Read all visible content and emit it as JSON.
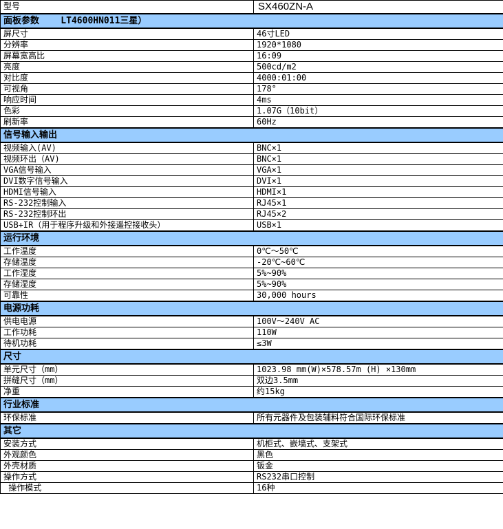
{
  "colors": {
    "section_bg": "#99CCFF",
    "border": "#000000",
    "text": "#000000",
    "background": "#FFFFFF"
  },
  "table": {
    "model": {
      "label": "型号",
      "value": "SX460ZN-A"
    },
    "sections": [
      {
        "title": "面板参数    LT4600HN011三星）",
        "rows": [
          {
            "label": "屏尺寸",
            "value": "46寸LED"
          },
          {
            "label": "分辨率",
            "value": "1920*1080"
          },
          {
            "label": "屏幕宽高比",
            "value": "16:09"
          },
          {
            "label": "亮度",
            "value": "500cd/m2"
          },
          {
            "label": "对比度",
            "value": "4000:01:00"
          },
          {
            "label": "可视角",
            "value": "178°"
          },
          {
            "label": "响应时间",
            "value": "4ms"
          },
          {
            "label": "色彩",
            "value": "1.07G（10bit）"
          },
          {
            "label": "刷新率",
            "value": "60Hz"
          }
        ]
      },
      {
        "title": "信号输入输出",
        "rows": [
          {
            "label": "视频输入(AV)",
            "value": "BNC×1"
          },
          {
            "label": "视频环出（AV)",
            "value": "BNC×1"
          },
          {
            "label": "VGA信号输入",
            "value": "VGA×1"
          },
          {
            "label": "DVI数字信号输入",
            "value": "DVI×1"
          },
          {
            "label": "HDMI信号输入",
            "value": "HDMI×1"
          },
          {
            "label": "RS-232控制输入",
            "value": "RJ45×1"
          },
          {
            "label": "RS-232控制环出",
            "value": "RJ45×2"
          },
          {
            "label": "USB+IR（用于程序升级和外接遥控接收头）",
            "value": "USB×1"
          }
        ]
      },
      {
        "title": "运行环境",
        "rows": [
          {
            "label": "工作温度",
            "value": "0℃～50℃"
          },
          {
            "label": "存储温度",
            "value": "-20℃~60℃"
          },
          {
            "label": "工作湿度",
            "value": "5%~90%"
          },
          {
            "label": "存储湿度",
            "value": "5%~90%"
          },
          {
            "label": "可靠性",
            "value": "30,000 hours"
          }
        ]
      },
      {
        "title": "电源功耗",
        "rows": [
          {
            "label": "供电电源",
            "value": "100V～240V AC"
          },
          {
            "label": "工作功耗",
            "value": "110W"
          },
          {
            "label": "待机功耗",
            "value": "≤3W"
          }
        ]
      },
      {
        "title": "尺寸",
        "rows": [
          {
            "label": "单元尺寸（mm）",
            "value": "1023.98 mm(W)×578.57m (H) ×130mm"
          },
          {
            "label": "拼缝尺寸（mm）",
            "value": "双边3.5mm"
          },
          {
            "label": "净重",
            "value": "约15kg"
          }
        ]
      },
      {
        "title": "行业标准",
        "rows": [
          {
            "label": "环保标准",
            "value": "所有元器件及包装辅料符合国际环保标准"
          }
        ]
      },
      {
        "title": "其它",
        "rows": [
          {
            "label": "安装方式",
            "value": "机柜式、嵌墙式、支架式"
          },
          {
            "label": "外观颜色",
            "value": "黑色"
          },
          {
            "label": "外壳材质",
            "value": "钣金"
          },
          {
            "label": "操作方式",
            "value": "RS232串口控制"
          },
          {
            "label": " 操作模式",
            "value": "16种"
          }
        ]
      }
    ]
  }
}
